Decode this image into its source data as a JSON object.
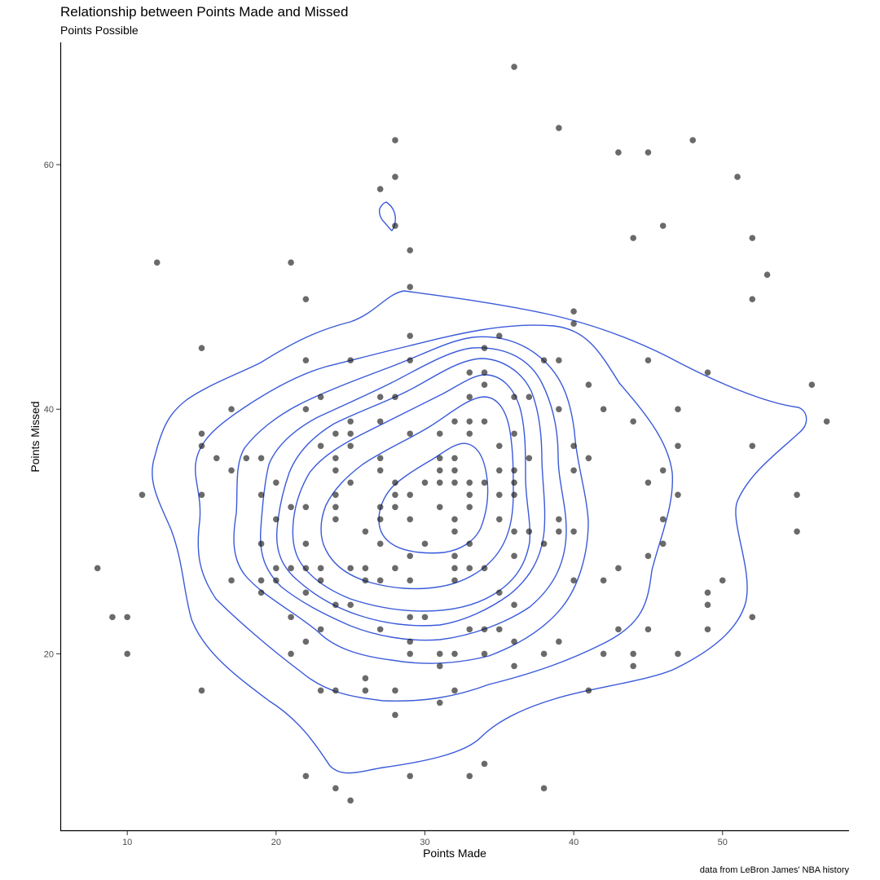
{
  "chart_data": {
    "type": "scatter",
    "title": "Relationship between Points Made and Missed",
    "subtitle": "Points Possible",
    "xlabel": "Points Made",
    "ylabel": "Points Missed",
    "caption": "data from LeBron James' NBA history",
    "xlim": [
      5.5,
      58.5
    ],
    "ylim": [
      5.5,
      70
    ],
    "x_ticks": [
      10,
      20,
      30,
      40,
      50
    ],
    "y_ticks": [
      20,
      40,
      60
    ],
    "grid": false,
    "legend": "none",
    "point_color": "#1a1a1a",
    "contour_color": "#3a5ad9",
    "points": [
      [
        36,
        68
      ],
      [
        39,
        63
      ],
      [
        28,
        62
      ],
      [
        48,
        62
      ],
      [
        43,
        61
      ],
      [
        45,
        61
      ],
      [
        28,
        59
      ],
      [
        51,
        59
      ],
      [
        27,
        58
      ],
      [
        28,
        55
      ],
      [
        46,
        55
      ],
      [
        44,
        54
      ],
      [
        52,
        54
      ],
      [
        29,
        53
      ],
      [
        12,
        52
      ],
      [
        21,
        52
      ],
      [
        53,
        51
      ],
      [
        29,
        50
      ],
      [
        22,
        49
      ],
      [
        52,
        49
      ],
      [
        40,
        48
      ],
      [
        40,
        47
      ],
      [
        29,
        46
      ],
      [
        35,
        46
      ],
      [
        15,
        45
      ],
      [
        34,
        45
      ],
      [
        22,
        44
      ],
      [
        25,
        44
      ],
      [
        29,
        44
      ],
      [
        38,
        44
      ],
      [
        39,
        44
      ],
      [
        45,
        44
      ],
      [
        33,
        43
      ],
      [
        34,
        43
      ],
      [
        49,
        43
      ],
      [
        34,
        42
      ],
      [
        41,
        42
      ],
      [
        56,
        42
      ],
      [
        23,
        41
      ],
      [
        27,
        41
      ],
      [
        28,
        41
      ],
      [
        33,
        41
      ],
      [
        36,
        41
      ],
      [
        37,
        41
      ],
      [
        17,
        40
      ],
      [
        22,
        40
      ],
      [
        39,
        40
      ],
      [
        42,
        40
      ],
      [
        47,
        40
      ],
      [
        25,
        39
      ],
      [
        27,
        39
      ],
      [
        32,
        39
      ],
      [
        33,
        39
      ],
      [
        34,
        39
      ],
      [
        44,
        39
      ],
      [
        57,
        39
      ],
      [
        15,
        38
      ],
      [
        24,
        38
      ],
      [
        25,
        38
      ],
      [
        29,
        38
      ],
      [
        31,
        38
      ],
      [
        33,
        38
      ],
      [
        36,
        38
      ],
      [
        15,
        37
      ],
      [
        23,
        37
      ],
      [
        25,
        37
      ],
      [
        35,
        37
      ],
      [
        40,
        37
      ],
      [
        47,
        37
      ],
      [
        52,
        37
      ],
      [
        16,
        36
      ],
      [
        18,
        36
      ],
      [
        19,
        36
      ],
      [
        24,
        36
      ],
      [
        27,
        36
      ],
      [
        31,
        36
      ],
      [
        32,
        36
      ],
      [
        37,
        36
      ],
      [
        41,
        36
      ],
      [
        17,
        35
      ],
      [
        24,
        35
      ],
      [
        27,
        35
      ],
      [
        31,
        35
      ],
      [
        32,
        35
      ],
      [
        35,
        35
      ],
      [
        36,
        35
      ],
      [
        40,
        35
      ],
      [
        46,
        35
      ],
      [
        20,
        34
      ],
      [
        25,
        34
      ],
      [
        28,
        34
      ],
      [
        30,
        34
      ],
      [
        31,
        34
      ],
      [
        32,
        34
      ],
      [
        33,
        34
      ],
      [
        34,
        34
      ],
      [
        36,
        34
      ],
      [
        45,
        34
      ],
      [
        11,
        33
      ],
      [
        15,
        33
      ],
      [
        19,
        33
      ],
      [
        24,
        33
      ],
      [
        28,
        33
      ],
      [
        29,
        33
      ],
      [
        33,
        33
      ],
      [
        35,
        33
      ],
      [
        36,
        33
      ],
      [
        47,
        33
      ],
      [
        55,
        33
      ],
      [
        21,
        32
      ],
      [
        22,
        32
      ],
      [
        24,
        32
      ],
      [
        27,
        32
      ],
      [
        28,
        32
      ],
      [
        31,
        32
      ],
      [
        33,
        32
      ],
      [
        20,
        31
      ],
      [
        24,
        31
      ],
      [
        27,
        31
      ],
      [
        29,
        31
      ],
      [
        32,
        31
      ],
      [
        35,
        31
      ],
      [
        39,
        31
      ],
      [
        46,
        31
      ],
      [
        26,
        30
      ],
      [
        32,
        30
      ],
      [
        36,
        30
      ],
      [
        37,
        30
      ],
      [
        39,
        30
      ],
      [
        40,
        30
      ],
      [
        55,
        30
      ],
      [
        19,
        29
      ],
      [
        22,
        29
      ],
      [
        27,
        29
      ],
      [
        30,
        29
      ],
      [
        33,
        29
      ],
      [
        38,
        29
      ],
      [
        46,
        29
      ],
      [
        29,
        28
      ],
      [
        32,
        28
      ],
      [
        36,
        28
      ],
      [
        45,
        28
      ],
      [
        8,
        27
      ],
      [
        20,
        27
      ],
      [
        21,
        27
      ],
      [
        22,
        27
      ],
      [
        23,
        27
      ],
      [
        25,
        27
      ],
      [
        26,
        27
      ],
      [
        28,
        27
      ],
      [
        32,
        27
      ],
      [
        33,
        27
      ],
      [
        34,
        27
      ],
      [
        43,
        27
      ],
      [
        17,
        26
      ],
      [
        19,
        26
      ],
      [
        20,
        26
      ],
      [
        23,
        26
      ],
      [
        26,
        26
      ],
      [
        27,
        26
      ],
      [
        29,
        26
      ],
      [
        32,
        26
      ],
      [
        40,
        26
      ],
      [
        42,
        26
      ],
      [
        50,
        26
      ],
      [
        19,
        25
      ],
      [
        22,
        25
      ],
      [
        35,
        25
      ],
      [
        49,
        25
      ],
      [
        24,
        24
      ],
      [
        25,
        24
      ],
      [
        36,
        24
      ],
      [
        49,
        24
      ],
      [
        9,
        23
      ],
      [
        10,
        23
      ],
      [
        21,
        23
      ],
      [
        29,
        23
      ],
      [
        30,
        23
      ],
      [
        52,
        23
      ],
      [
        23,
        22
      ],
      [
        27,
        22
      ],
      [
        33,
        22
      ],
      [
        34,
        22
      ],
      [
        35,
        22
      ],
      [
        43,
        22
      ],
      [
        45,
        22
      ],
      [
        49,
        22
      ],
      [
        22,
        21
      ],
      [
        29,
        21
      ],
      [
        36,
        21
      ],
      [
        39,
        21
      ],
      [
        10,
        20
      ],
      [
        21,
        20
      ],
      [
        29,
        20
      ],
      [
        31,
        20
      ],
      [
        32,
        20
      ],
      [
        34,
        20
      ],
      [
        38,
        20
      ],
      [
        42,
        20
      ],
      [
        44,
        20
      ],
      [
        47,
        20
      ],
      [
        31,
        19
      ],
      [
        36,
        19
      ],
      [
        44,
        19
      ],
      [
        26,
        18
      ],
      [
        15,
        17
      ],
      [
        23,
        17
      ],
      [
        24,
        17
      ],
      [
        26,
        17
      ],
      [
        28,
        17
      ],
      [
        32,
        17
      ],
      [
        41,
        17
      ],
      [
        31,
        16
      ],
      [
        28,
        15
      ],
      [
        34,
        11
      ],
      [
        22,
        10
      ],
      [
        29,
        10
      ],
      [
        33,
        10
      ],
      [
        24,
        9
      ],
      [
        38,
        9
      ],
      [
        25,
        8
      ]
    ]
  }
}
